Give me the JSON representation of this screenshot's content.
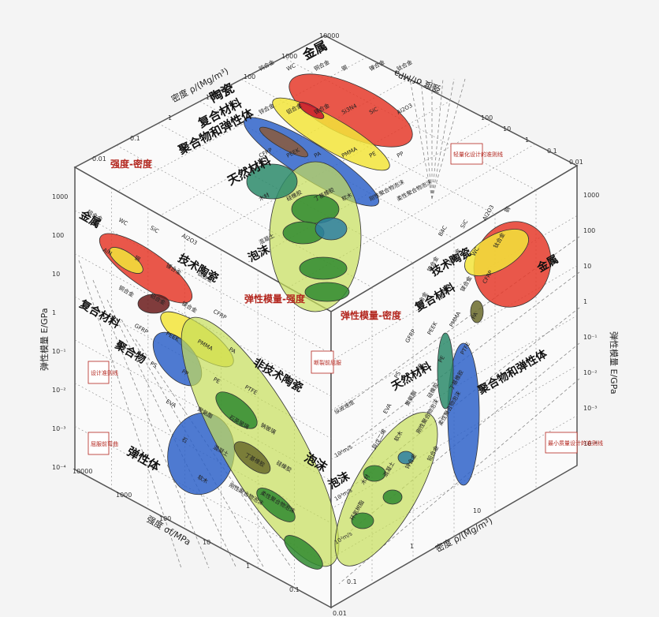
{
  "chart_data": [
    {
      "type": "scatter",
      "panel": "top",
      "title": "强度-密度",
      "xlabel": "密度 ρ/(Mg/m³)",
      "ylabel": "强度 σf/MPa",
      "x_ticks": [
        "10000",
        "1000",
        "100",
        "10",
        "1",
        "0.1",
        "0.01"
      ],
      "y_ticks": [
        "100",
        "10",
        "1",
        "0.1",
        "0.01"
      ],
      "families": [
        "金属",
        "陶瓷",
        "复合材料",
        "聚合物和弹性体",
        "天然材料",
        "泡沫"
      ],
      "materials": [
        "钨合金",
        "WC",
        "铜合金",
        "钢",
        "镍合金",
        "钛合金",
        "锌合金",
        "铝合金",
        "镁合金",
        "Si3N4",
        "SiC",
        "Al2O3",
        "CFRP",
        "PEEK",
        "PA",
        "PMMA",
        "PE",
        "PP",
        "木材",
        "硅橡胶",
        "丁基橡胶",
        "软木",
        "刚性聚合物泡沫",
        "柔性聚合物泡沫",
        "混凝土"
      ],
      "guide_lines": "轻量化设计的准则线"
    },
    {
      "type": "scatter",
      "panel": "left",
      "title": "弹性模量-强度",
      "xlabel": "强度 σf/MPa",
      "ylabel": "弹性模量 E/GPa",
      "x_ticks": [
        "10000",
        "1000",
        "100",
        "10",
        "1",
        "0.1",
        "0.01"
      ],
      "y_ticks": [
        "1000",
        "100",
        "10",
        "1",
        "10⁻¹",
        "10⁻²",
        "10⁻³",
        "10⁻⁴"
      ],
      "families": [
        "金属",
        "技术陶瓷",
        "复合材料",
        "聚合物",
        "弹性体",
        "非技术陶瓷",
        "泡沫"
      ],
      "materials": [
        "钨合金",
        "WC",
        "SiC",
        "Al2O3",
        "AlN",
        "钢",
        "镍合金",
        "钛合金",
        "铜合金",
        "铝合金",
        "镁合金",
        "CFRP",
        "GFRP",
        "PEEK",
        "PMMA",
        "PA",
        "PS",
        "PP",
        "PE",
        "PTFE",
        "EVA",
        "聚氨酯",
        "石英玻璃",
        "钠玻璃",
        "石",
        "混凝土",
        "丁基橡胶",
        "硅橡胶",
        "软木",
        "刚性聚合物泡沫",
        "柔性聚合物泡沫"
      ],
      "notes": [
        "设计准则线",
        "屈服前弯曲",
        "断裂前屈服"
      ]
    },
    {
      "type": "scatter",
      "panel": "right",
      "title": "弹性模量-密度",
      "xlabel": "密度 ρ/(Mg/m³)",
      "ylabel": "弹性模量 E/GPa",
      "y_ticks": [
        "1000",
        "100",
        "10",
        "1",
        "10⁻¹",
        "10⁻²",
        "10⁻³",
        "10⁻⁴"
      ],
      "x_ticks": [
        "0.1",
        "1",
        "10"
      ],
      "families": [
        "技术陶瓷",
        "金属",
        "复合材料",
        "天然材料",
        "聚合物和弹性体",
        "泡沫"
      ],
      "materials": [
        "B4C",
        "SiC",
        "Al2O3",
        "钢",
        "镍合金",
        "钨合金",
        "WC",
        "钛合金",
        "铝合金",
        "铜合金",
        "镁合金",
        "CFRP",
        "GFRP",
        "PEEK",
        "PMMA",
        "PA",
        "PS",
        "PP",
        "PE",
        "PTFE",
        "EVA",
        "聚氨酯",
        "硅橡胶",
        "丁基橡胶",
        "异戊二烯",
        "软木",
        "刚性聚合物泡沫",
        "柔性聚合物泡沫",
        "木材",
        "混凝土",
        "锌合金",
        "铅合金",
        "环氧树脂"
      ],
      "guide_lines": "最小质量设计的准则线",
      "wave_speed": [
        "纵波速度",
        "10⁴m/s",
        "10³m/s",
        "10²m/s"
      ]
    }
  ]
}
